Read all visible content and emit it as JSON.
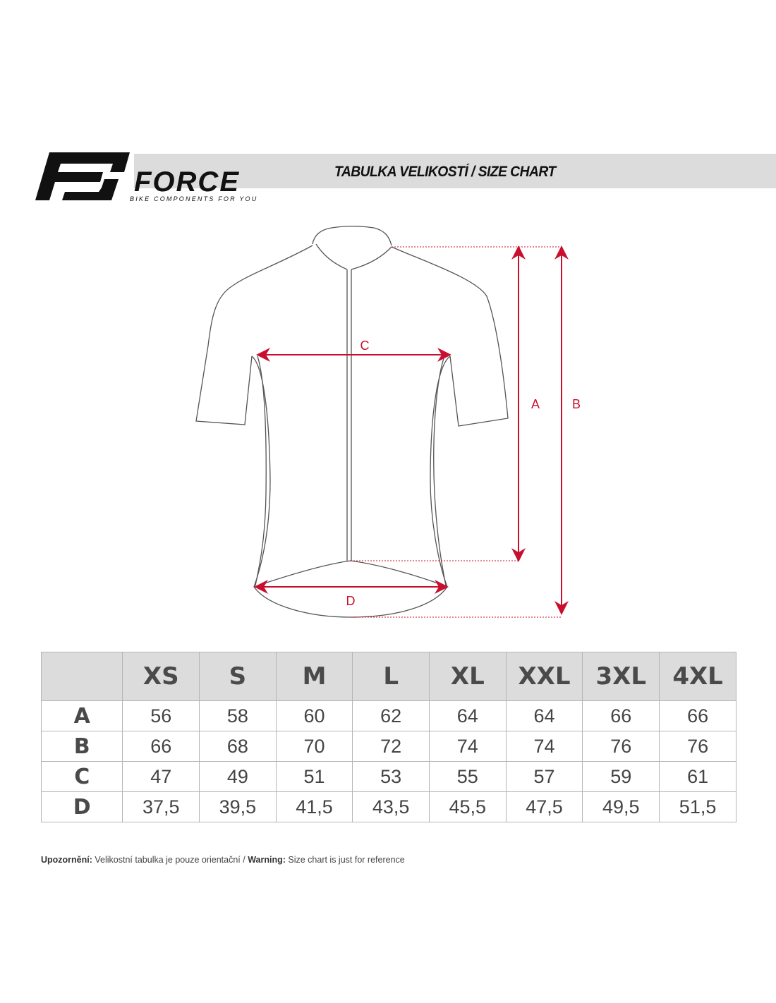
{
  "header": {
    "brand": "FORCE",
    "tagline": "BIKE COMPONENTS FOR YOU",
    "title": "TABULKA VELIKOSTÍ / SIZE CHART"
  },
  "diagram": {
    "labels": {
      "A": "A",
      "B": "B",
      "C": "C",
      "D": "D"
    },
    "accent_color": "#c8102e"
  },
  "table": {
    "sizes": [
      "XS",
      "S",
      "M",
      "L",
      "XL",
      "XXL",
      "3XL",
      "4XL"
    ],
    "rows": [
      {
        "label": "A",
        "values": [
          "56",
          "58",
          "60",
          "62",
          "64",
          "64",
          "66",
          "66"
        ]
      },
      {
        "label": "B",
        "values": [
          "66",
          "68",
          "70",
          "72",
          "74",
          "74",
          "76",
          "76"
        ]
      },
      {
        "label": "C",
        "values": [
          "47",
          "49",
          "51",
          "53",
          "55",
          "57",
          "59",
          "61"
        ]
      },
      {
        "label": "D",
        "values": [
          "37,5",
          "39,5",
          "41,5",
          "43,5",
          "45,5",
          "47,5",
          "49,5",
          "51,5"
        ]
      }
    ]
  },
  "note": {
    "cz_label": "Upozornění:",
    "cz_text": " Velikostní tabulka je pouze orientační / ",
    "en_label": "Warning:",
    "en_text": " Size chart is just for reference"
  }
}
